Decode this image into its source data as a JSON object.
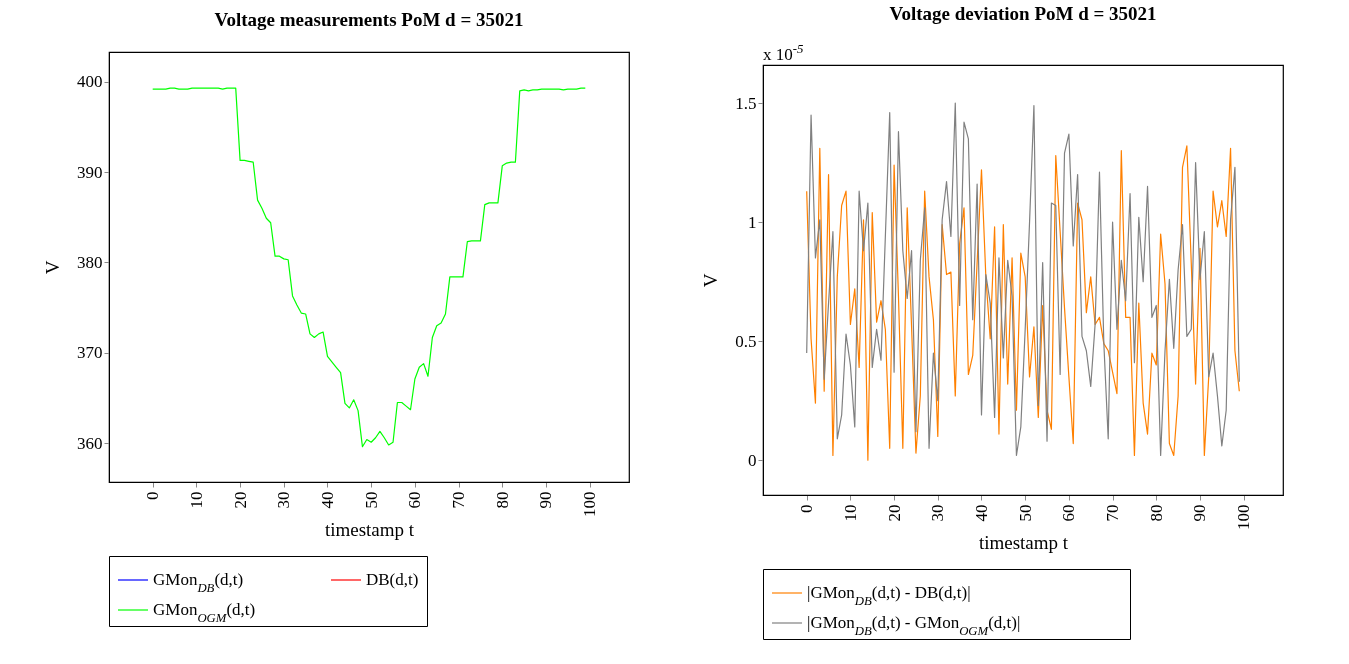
{
  "chart_data": [
    {
      "type": "line",
      "title": "Voltage measurements PoM d = 35021",
      "xlabel": "timestamp t",
      "ylabel": "V",
      "xlim": [
        -10,
        109
      ],
      "ylim": [
        355.7,
        403.3
      ],
      "xticks": [
        0,
        10,
        20,
        30,
        40,
        50,
        60,
        70,
        80,
        90,
        100
      ],
      "yticks": [
        360,
        370,
        380,
        390,
        400
      ],
      "legend": "bottom",
      "x": [
        0,
        1,
        2,
        3,
        4,
        5,
        6,
        7,
        8,
        9,
        10,
        11,
        12,
        13,
        14,
        15,
        16,
        17,
        18,
        19,
        20,
        21,
        22,
        23,
        24,
        25,
        26,
        27,
        28,
        29,
        30,
        31,
        32,
        33,
        34,
        35,
        36,
        37,
        38,
        39,
        40,
        41,
        42,
        43,
        44,
        45,
        46,
        47,
        48,
        49,
        50,
        51,
        52,
        53,
        54,
        55,
        56,
        57,
        58,
        59,
        60,
        61,
        62,
        63,
        64,
        65,
        66,
        67,
        68,
        69,
        70,
        71,
        72,
        73,
        74,
        75,
        76,
        77,
        78,
        79,
        80,
        81,
        82,
        83,
        84,
        85,
        86,
        87,
        88,
        89,
        90,
        91,
        92,
        93,
        94,
        95,
        96,
        97,
        98,
        99
      ],
      "series": [
        {
          "name": "GMon$_{DB}$(d,t)",
          "color": "#0000ff",
          "values": [
            null,
            null,
            null,
            null,
            null,
            null,
            null,
            null,
            null,
            null,
            null,
            null,
            null,
            null,
            null,
            null,
            null,
            null,
            null,
            null,
            null,
            null,
            null,
            null,
            null,
            null,
            null,
            null,
            null,
            null,
            null,
            null,
            null,
            null,
            null,
            null,
            null,
            null,
            null,
            null,
            null,
            null,
            null,
            null,
            null,
            null,
            null,
            null,
            null,
            null,
            null,
            null,
            null,
            null,
            null,
            null,
            null,
            null,
            null,
            null,
            null,
            null,
            null,
            null,
            null,
            null,
            null,
            null,
            null,
            null,
            null,
            null,
            null,
            null,
            null,
            null,
            null,
            null,
            null,
            null,
            null,
            null,
            null,
            null,
            null,
            null,
            null,
            null,
            null,
            null,
            null,
            null,
            null,
            null,
            null,
            null,
            null,
            null,
            null,
            null
          ]
        },
        {
          "name": "DB(d,t)",
          "color": "#ff0000",
          "values": [
            null,
            null,
            null,
            null,
            null,
            null,
            null,
            null,
            null,
            null,
            null,
            null,
            null,
            null,
            null,
            null,
            null,
            null,
            null,
            null,
            null,
            null,
            null,
            null,
            null,
            null,
            null,
            null,
            null,
            null,
            null,
            null,
            null,
            null,
            null,
            null,
            null,
            null,
            null,
            null,
            null,
            null,
            null,
            null,
            null,
            null,
            null,
            null,
            null,
            null,
            null,
            null,
            null,
            null,
            null,
            null,
            null,
            null,
            null,
            null,
            null,
            null,
            null,
            null,
            null,
            null,
            null,
            null,
            null,
            null,
            null,
            null,
            null,
            null,
            null,
            null,
            null,
            null,
            null,
            null,
            null,
            null,
            null,
            null,
            null,
            null,
            null,
            null,
            null,
            null,
            null,
            null,
            null,
            null,
            null,
            null,
            null,
            null,
            null,
            null
          ]
        },
        {
          "name": "GMon$_{OGM}$(d,t)",
          "color": "#00ff00",
          "values": [
            399.2,
            399.2,
            399.2,
            399.2,
            399.3,
            399.3,
            399.2,
            399.2,
            399.2,
            399.3,
            399.3,
            399.3,
            399.3,
            399.3,
            399.3,
            399.3,
            399.2,
            399.3,
            399.3,
            399.3,
            391.3,
            391.3,
            391.2,
            391.1,
            386.9,
            386.0,
            384.9,
            384.4,
            380.7,
            380.7,
            380.4,
            380.3,
            376.3,
            375.3,
            374.4,
            374.3,
            372.1,
            371.7,
            372.1,
            372.3,
            369.6,
            369.0,
            368.4,
            367.8,
            364.4,
            363.9,
            364.8,
            363.6,
            359.6,
            360.4,
            360.1,
            360.6,
            361.3,
            360.6,
            359.8,
            360.1,
            364.5,
            364.5,
            364.1,
            363.7,
            367.1,
            368.4,
            368.8,
            367.4,
            371.7,
            373.0,
            373.3,
            374.3,
            378.4,
            378.4,
            378.4,
            378.4,
            382.3,
            382.4,
            382.4,
            382.4,
            386.4,
            386.6,
            386.6,
            386.6,
            390.7,
            391.0,
            391.1,
            391.1,
            399.0,
            399.1,
            399.0,
            399.1,
            399.1,
            399.2,
            399.2,
            399.2,
            399.2,
            399.2,
            399.1,
            399.2,
            399.2,
            399.2,
            399.3,
            399.3
          ]
        }
      ]
    },
    {
      "type": "line",
      "title": "Voltage deviation PoM d = 35021",
      "xlabel": "timestamp t",
      "ylabel": "V",
      "annotations": [
        "x 10$^{-5}$"
      ],
      "xlim": [
        -10,
        109
      ],
      "ylim": [
        -0.146,
        1.66
      ],
      "xticks": [
        0,
        10,
        20,
        30,
        40,
        50,
        60,
        70,
        80,
        90,
        100
      ],
      "yticks": [
        0,
        0.5,
        1,
        1.5
      ],
      "legend": "bottom",
      "x": [
        0,
        1,
        2,
        3,
        4,
        5,
        6,
        7,
        8,
        9,
        10,
        11,
        12,
        13,
        14,
        15,
        16,
        17,
        18,
        19,
        20,
        21,
        22,
        23,
        24,
        25,
        26,
        27,
        28,
        29,
        30,
        31,
        32,
        33,
        34,
        35,
        36,
        37,
        38,
        39,
        40,
        41,
        42,
        43,
        44,
        45,
        46,
        47,
        48,
        49,
        50,
        51,
        52,
        53,
        54,
        55,
        56,
        57,
        58,
        59,
        60,
        61,
        62,
        63,
        64,
        65,
        66,
        67,
        68,
        69,
        70,
        71,
        72,
        73,
        74,
        75,
        76,
        77,
        78,
        79,
        80,
        81,
        82,
        83,
        84,
        85,
        86,
        87,
        88,
        89,
        90,
        91,
        92,
        93,
        94,
        95,
        96,
        97,
        98,
        99
      ],
      "series": [
        {
          "name": "|GMon$_{DB}$(d,t) - DB(d,t)|",
          "color": "#ff8000",
          "values": [
            1.13,
            0.51,
            0.24,
            1.31,
            0.29,
            1.2,
            0.02,
            0.77,
            1.07,
            1.13,
            0.57,
            0.72,
            0.39,
            1.01,
            0.0,
            1.04,
            0.58,
            0.67,
            0.55,
            0.05,
            1.24,
            0.69,
            0.05,
            1.06,
            0.56,
            0.03,
            0.27,
            1.13,
            0.77,
            0.59,
            0.1,
            0.99,
            0.78,
            0.79,
            0.27,
            0.91,
            1.06,
            0.36,
            0.44,
            0.83,
            1.22,
            0.77,
            0.51,
            0.98,
            0.11,
            0.99,
            0.32,
            0.85,
            0.21,
            0.87,
            0.77,
            0.35,
            0.56,
            0.18,
            0.65,
            0.21,
            0.13,
            1.28,
            0.96,
            0.64,
            0.35,
            0.07,
            1.08,
            1.01,
            0.62,
            0.77,
            0.57,
            0.6,
            0.49,
            0.46,
            0.37,
            0.28,
            1.3,
            0.6,
            0.6,
            0.02,
            0.66,
            0.24,
            0.11,
            0.45,
            0.4,
            0.95,
            0.74,
            0.07,
            0.02,
            0.27,
            1.23,
            1.32,
            0.83,
            0.32,
            0.89,
            0.02,
            0.35,
            1.13,
            0.98,
            1.09,
            0.94,
            1.31,
            0.46,
            0.29
          ]
        },
        {
          "name": "|GMon$_{DB}$(d,t) - GMon$_{OGM}$(d,t)|",
          "color": "#808080",
          "values": [
            0.45,
            1.45,
            0.85,
            1.01,
            0.34,
            0.66,
            0.96,
            0.09,
            0.19,
            0.53,
            0.4,
            0.14,
            1.13,
            0.88,
            1.08,
            0.39,
            0.55,
            0.42,
            0.94,
            1.46,
            0.37,
            1.38,
            0.88,
            0.68,
            0.88,
            0.12,
            0.84,
            1.06,
            0.05,
            0.45,
            0.25,
            1.01,
            1.17,
            0.94,
            1.5,
            0.65,
            1.42,
            1.35,
            0.59,
            1.16,
            0.19,
            0.78,
            0.66,
            0.18,
            0.85,
            0.43,
            0.84,
            0.69,
            0.02,
            0.14,
            0.55,
            1.0,
            1.49,
            0.23,
            0.83,
            0.08,
            1.08,
            1.07,
            0.36,
            1.29,
            1.37,
            0.9,
            1.2,
            0.52,
            0.46,
            0.31,
            0.57,
            1.21,
            0.49,
            0.09,
            1.0,
            0.55,
            0.84,
            0.67,
            1.12,
            0.41,
            1.02,
            0.75,
            1.15,
            0.6,
            0.65,
            0.02,
            0.46,
            0.76,
            0.47,
            0.8,
            0.99,
            0.52,
            0.55,
            1.25,
            0.76,
            0.96,
            0.35,
            0.45,
            0.27,
            0.06,
            0.21,
            1.01,
            1.23,
            0.33
          ]
        }
      ]
    }
  ]
}
